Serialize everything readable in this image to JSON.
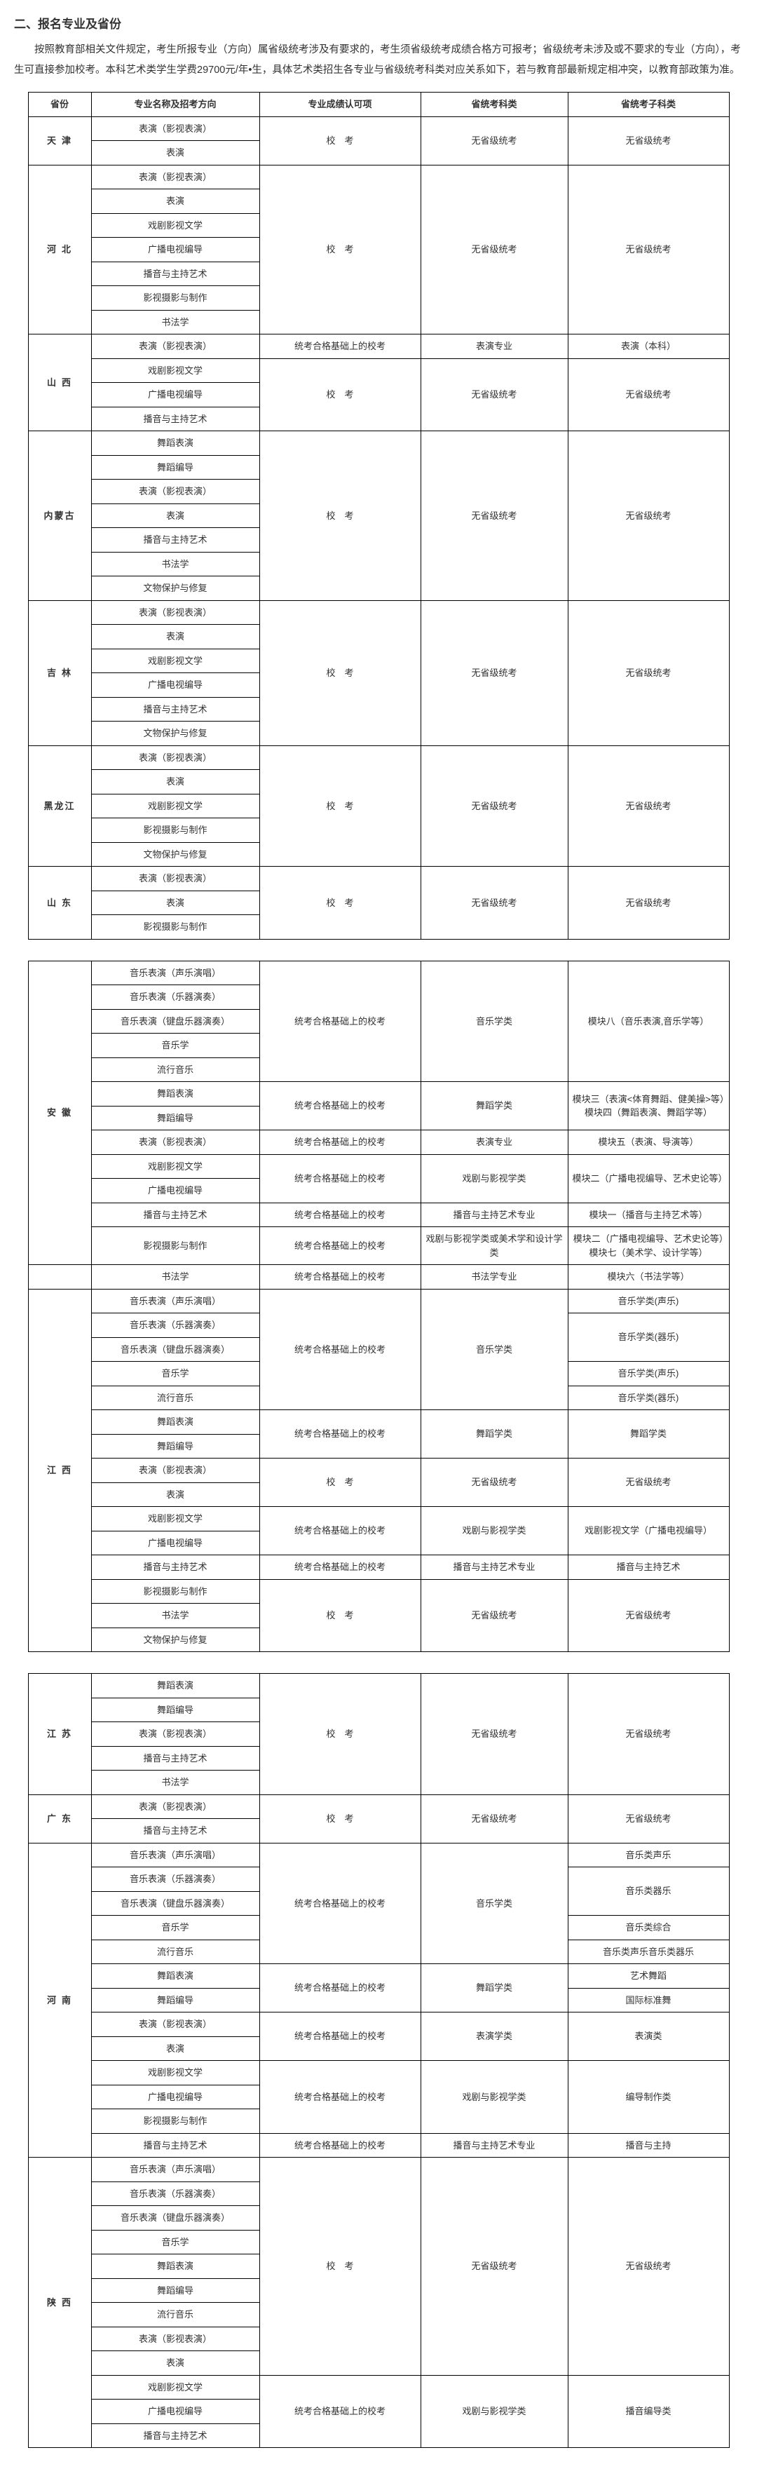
{
  "title": "二、报名专业及省份",
  "intro": "按照教育部相关文件规定，考生所报专业（方向）属省级统考涉及有要求的，考生须省级统考成绩合格方可报考；省级统考未涉及或不要求的专业（方向），考生可直接参加校考。本科艺术类学生学费29700元/年•生，具体艺术类招生各专业与省级统考科类对应关系如下，若与教育部最新规定相冲突，以教育部政策为准。",
  "headers": {
    "province": "省份",
    "major": "专业名称及招考方向",
    "recognition": "专业成绩认可项",
    "examType": "省统考科类",
    "subExamType": "省统考子科类"
  },
  "labels": {
    "school_exam": "校　考",
    "exam_on_pass": "统考合格基础上的校考",
    "no_prov_exam": "无省级统考"
  },
  "majors": {
    "perf_film": "表演（影视表演）",
    "perf": "表演",
    "drama_lit": "戏剧影视文学",
    "broadcast_dir": "广播电视编导",
    "host": "播音与主持艺术",
    "film_photo": "影视摄影与制作",
    "calli": "书法学",
    "dance_perf": "舞蹈表演",
    "dance_dir": "舞蹈编导",
    "relic": "文物保护与修复",
    "music_perf_vocal": "音乐表演（声乐演唱）",
    "music_perf_inst": "音乐表演（乐器演奏）",
    "music_perf_key": "音乐表演（键盘乐器演奏）",
    "musicology": "音乐学",
    "pop_music": "流行音乐"
  },
  "categories": {
    "perf_cat": "表演专业",
    "music_cat": "音乐学类",
    "dance_cat": "舞蹈学类",
    "drama_film_cat": "戏剧与影视学类",
    "host_cat": "播音与主持艺术专业",
    "calli_cat": "书法学专业",
    "perf_cat2": "表演学类",
    "drama_film_or_art": "戏剧与影视学类或美术学和设计学类"
  },
  "subcats": {
    "perf_bk": "表演（本科）",
    "mod8": "模块八（音乐表演,音乐学等）",
    "mod3_4": "模块三（表演<体育舞蹈、健美操>等）模块四（舞蹈表演、舞蹈学等）",
    "mod5": "模块五（表演、导演等）",
    "mod2a": "模块二（广播电视编导、艺术史论等）",
    "mod1": "模块一（播音与主持艺术等）",
    "mod2_7": "模块二（广播电视编导、艺术史论等）模块七（美术学、设计学等）",
    "mod6": "模块六（书法学等）",
    "music_vocal": "音乐学类(声乐)",
    "music_inst": "音乐学类(器乐)",
    "dance": "舞蹈学类",
    "drama_lit_dir": "戏剧影视文学（广播电视编导）",
    "host_sub": "播音与主持艺术",
    "music_vocal2": "音乐类声乐",
    "music_inst2": "音乐类器乐",
    "music_comp": "音乐类综合",
    "music_vocal_inst": "音乐类声乐音乐类器乐",
    "art_dance": "艺术舞蹈",
    "intl_dance": "国际标准舞",
    "perf_sub": "表演类",
    "edit_sub": "编导制作类",
    "host_sub2": "播音与主持",
    "edit_cat": "播音编导类"
  },
  "provinces": {
    "tianjin": "天津",
    "hebei": "河北",
    "shanxi": "山西",
    "neimenggu": "内蒙古",
    "jilin": "吉林",
    "heilongjiang": "黑龙江",
    "shandong": "山东",
    "anhui": "安徽",
    "jiangxi": "江西",
    "jiangsu": "江苏",
    "guangdong": "广东",
    "henan": "河南",
    "shaanxi": "陕西"
  }
}
